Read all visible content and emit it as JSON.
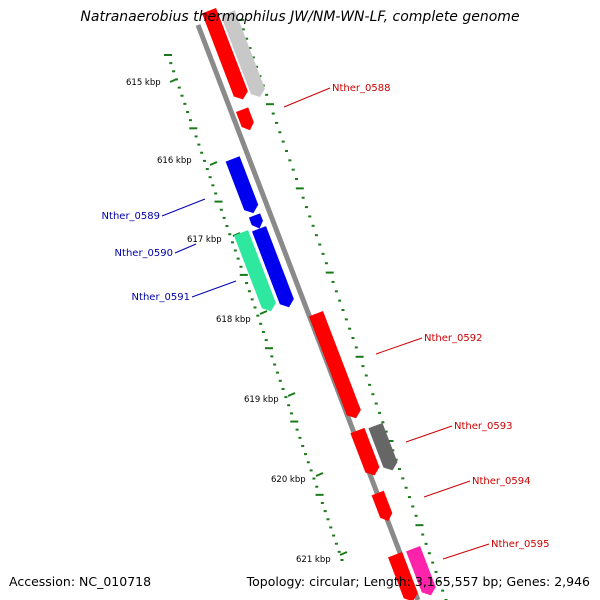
{
  "title": "Natranaerobius thermophilus JW/NM-WN-LF, complete genome",
  "accession": "Accession: NC_010718",
  "summary": "Topology: circular; Length: 3,165,557 bp; Genes: 2,946",
  "colors": {
    "backbone": "#808080",
    "tick_track": "#1a7a1a",
    "plus_strand_label": "#cc0000",
    "minus_strand_label": "#0000aa"
  },
  "ruler_ticks": [
    {
      "label": "615 kbp"
    },
    {
      "label": "616 kbp"
    },
    {
      "label": "617 kbp"
    },
    {
      "label": "618 kbp"
    },
    {
      "label": "619 kbp"
    },
    {
      "label": "620 kbp"
    },
    {
      "label": "621 kbp"
    }
  ],
  "gene_labels": [
    {
      "id": "Nther_0588",
      "strand": "plus"
    },
    {
      "id": "Nther_0589",
      "strand": "minus"
    },
    {
      "id": "Nther_0590",
      "strand": "minus"
    },
    {
      "id": "Nther_0591",
      "strand": "minus"
    },
    {
      "id": "Nther_0592",
      "strand": "plus"
    },
    {
      "id": "Nther_0593",
      "strand": "plus"
    },
    {
      "id": "Nther_0594",
      "strand": "plus"
    },
    {
      "id": "Nther_0595",
      "strand": "plus"
    }
  ],
  "features": [
    {
      "name": "feature-red",
      "color": "#ff0000"
    },
    {
      "name": "feature-lightgray",
      "color": "#c8c8c8"
    },
    {
      "name": "feature-blue",
      "color": "#0000ee"
    },
    {
      "name": "feature-green",
      "color": "#2ee8a0"
    },
    {
      "name": "feature-darkgray",
      "color": "#666666"
    },
    {
      "name": "feature-magenta",
      "color": "#ff22aa"
    }
  ]
}
